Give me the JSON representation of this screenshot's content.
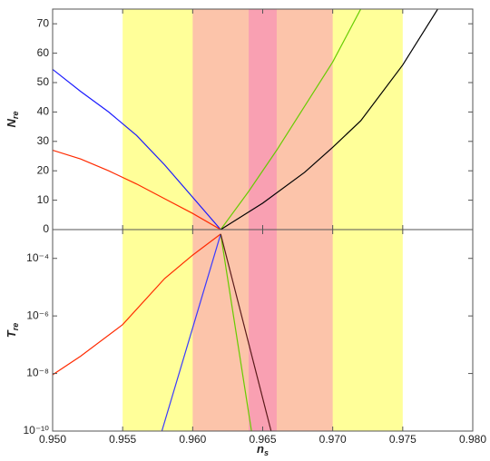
{
  "chart_data": [
    {
      "type": "line",
      "ylabel": {
        "main": "N",
        "sub": "re"
      },
      "xlim": [
        0.95,
        0.98
      ],
      "ylim": [
        0,
        75
      ],
      "yticks": [
        0,
        10,
        20,
        30,
        40,
        50,
        60,
        70
      ],
      "bands": [
        {
          "x": [
            0.955,
            0.975
          ],
          "color": "#ffff99"
        },
        {
          "x": [
            0.96,
            0.97
          ],
          "color": "#fcc4aa"
        },
        {
          "x": [
            0.964,
            0.966
          ],
          "color": "#f9a0b2"
        }
      ],
      "series": [
        {
          "color": "#1a1aff",
          "x": [
            0.95,
            0.952,
            0.954,
            0.956,
            0.958,
            0.96,
            0.962
          ],
          "values": [
            54.5,
            47,
            40,
            32,
            22,
            11,
            0
          ]
        },
        {
          "color": "#ff2a00",
          "x": [
            0.95,
            0.952,
            0.954,
            0.956,
            0.958,
            0.96,
            0.962
          ],
          "values": [
            27,
            24,
            20,
            15.5,
            10.5,
            5.5,
            0
          ]
        },
        {
          "color": "#66cc00",
          "x": [
            0.962,
            0.964,
            0.966,
            0.968,
            0.97,
            0.972
          ],
          "values": [
            0,
            13,
            27,
            42,
            57,
            75
          ]
        },
        {
          "color": "#000000",
          "x": [
            0.962,
            0.965,
            0.968,
            0.97,
            0.972,
            0.975,
            0.9775
          ],
          "values": [
            0,
            9,
            19.5,
            28,
            37,
            56,
            75
          ]
        }
      ]
    },
    {
      "type": "line",
      "log_y": true,
      "ylabel": {
        "main": "T",
        "sub": "re"
      },
      "xlabel": {
        "main": "n",
        "sub": "s"
      },
      "xlim": [
        0.95,
        0.98
      ],
      "xticks": [
        {
          "value": 0.95,
          "label": "0.950"
        },
        {
          "value": 0.955,
          "label": "0.955"
        },
        {
          "value": 0.96,
          "label": "0.960"
        },
        {
          "value": 0.965,
          "label": "0.965"
        },
        {
          "value": 0.97,
          "label": "0.970"
        },
        {
          "value": 0.975,
          "label": "0.975"
        },
        {
          "value": 0.98,
          "label": "0.980"
        }
      ],
      "ylim": [
        1e-10,
        0.001
      ],
      "yticks": [
        {
          "value": 1e-10,
          "label": "10⁻¹⁰"
        },
        {
          "value": 1e-08,
          "label": "10⁻⁸"
        },
        {
          "value": 1e-06,
          "label": "10⁻⁶"
        },
        {
          "value": 0.0001,
          "label": "10⁻⁴"
        }
      ],
      "bands": [
        {
          "x": [
            0.955,
            0.975
          ],
          "color": "#ffff99"
        },
        {
          "x": [
            0.96,
            0.97
          ],
          "color": "#fcc4aa"
        },
        {
          "x": [
            0.964,
            0.966
          ],
          "color": "#f9a0b2"
        }
      ],
      "series": [
        {
          "color": "#ff2a00",
          "x": [
            0.95,
            0.952,
            0.955,
            0.958,
            0.96,
            0.962
          ],
          "values": [
            9e-09,
            4e-08,
            5e-07,
            2e-05,
            0.00013,
            0.0007
          ]
        },
        {
          "color": "#3a3aff",
          "x": [
            0.962,
            0.9578
          ],
          "values": [
            0.0007,
            1e-10
          ]
        },
        {
          "color": "#66cc00",
          "x": [
            0.962,
            0.9642
          ],
          "values": [
            0.0007,
            1e-10
          ]
        },
        {
          "color": "#5a1a1a",
          "x": [
            0.962,
            0.9656
          ],
          "values": [
            0.0007,
            1e-10
          ]
        }
      ]
    }
  ]
}
